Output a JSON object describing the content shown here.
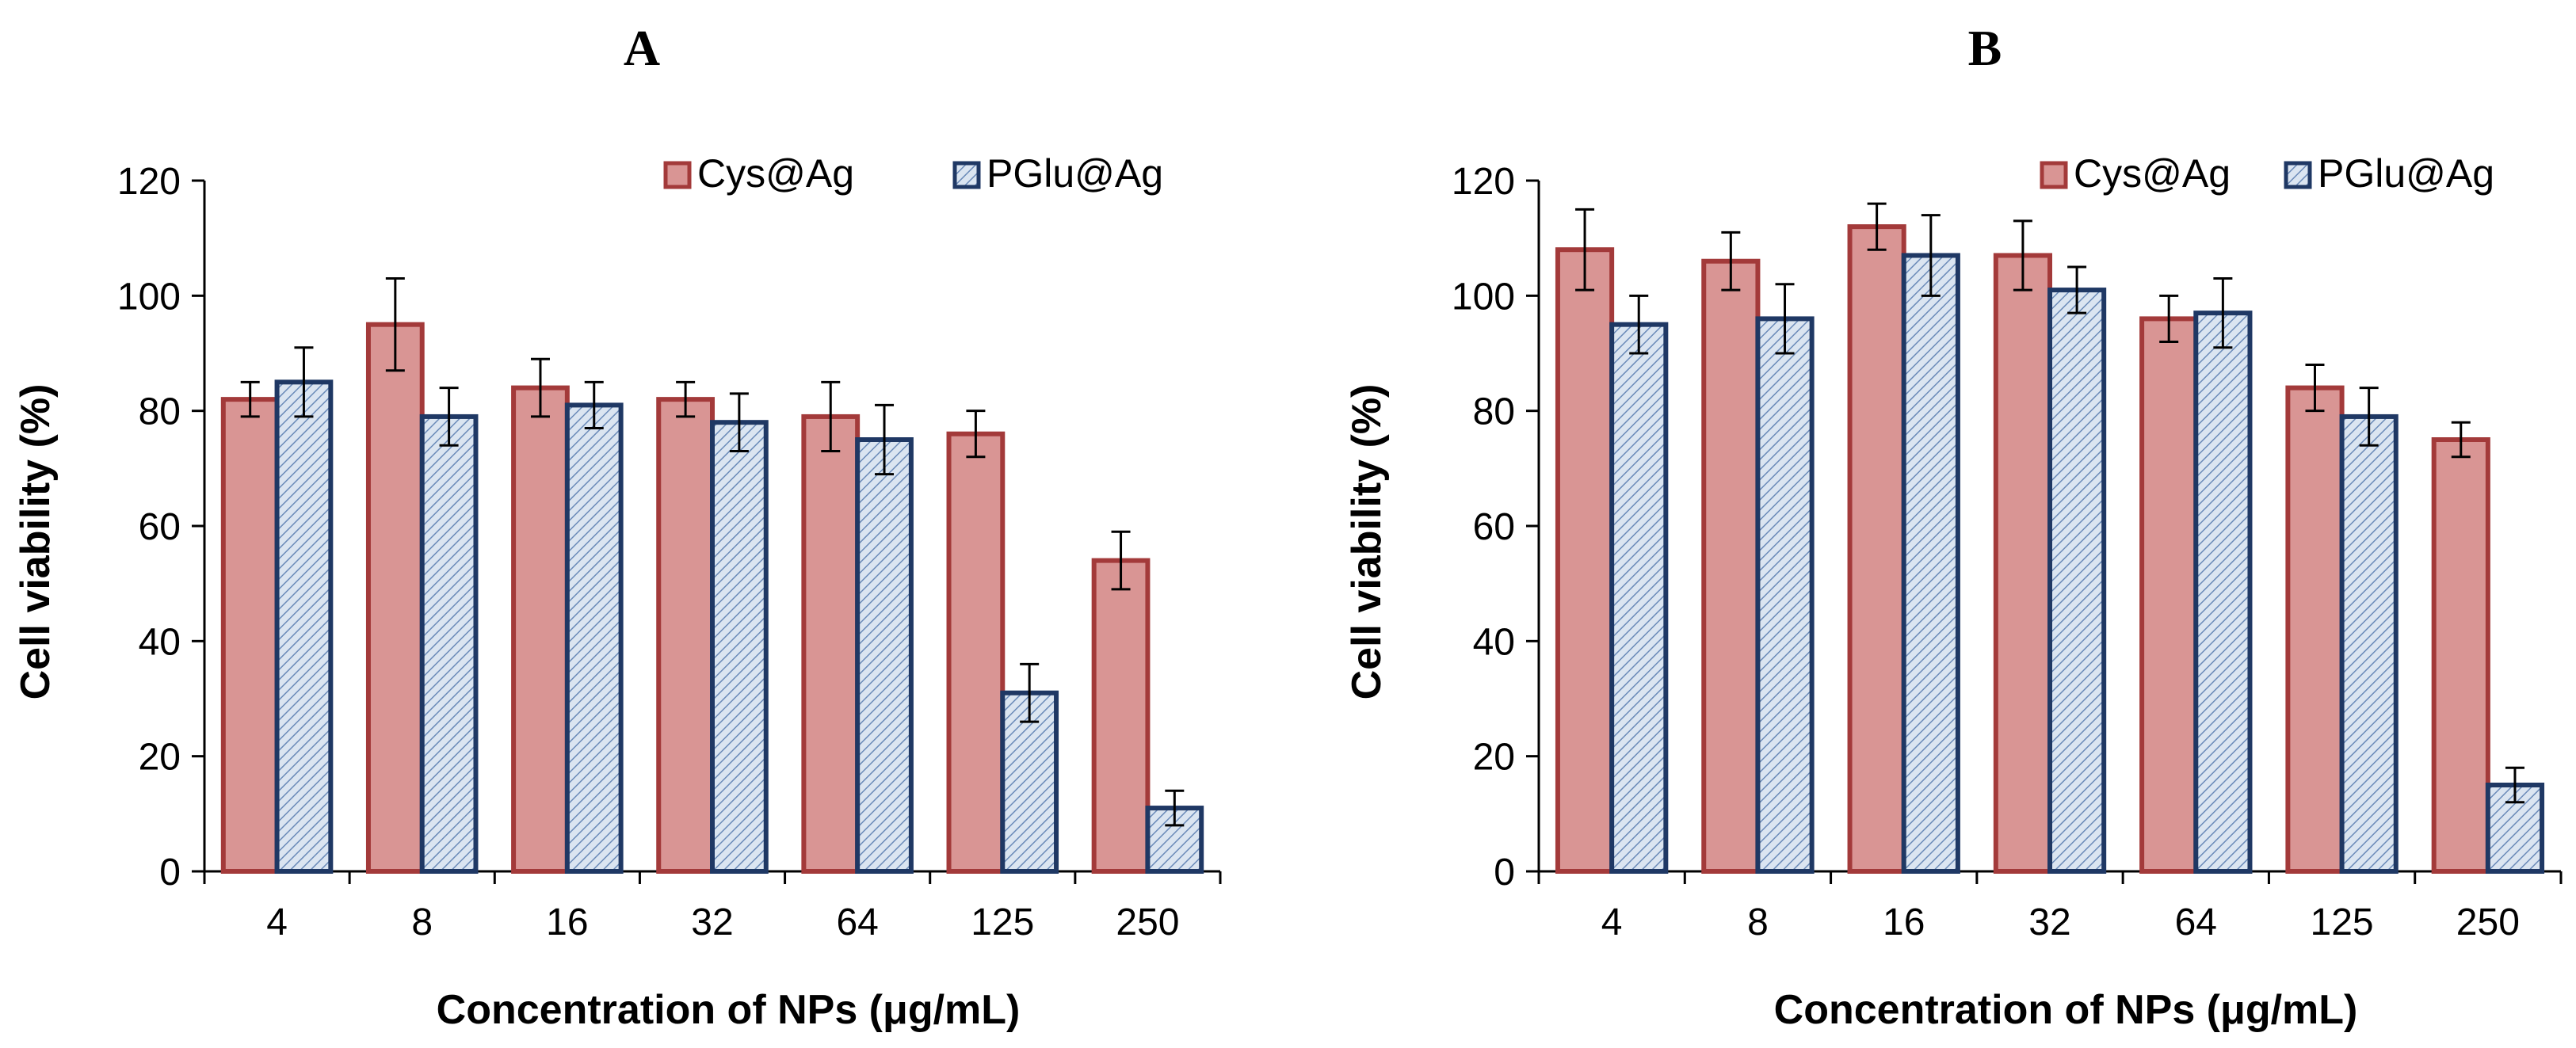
{
  "colors": {
    "series1_fill": "#d99594",
    "series1_stroke": "#a33a3a",
    "series2_fill": "#dbe5f1",
    "series2_hatch": "#6a8ab8",
    "series2_stroke": "#1f3864",
    "axis": "#000000"
  },
  "chart_data": [
    {
      "type": "bar",
      "panel_label": "A",
      "xlabel": "Concentration  of NPs  (μg/mL)",
      "ylabel": "Cell  viability  (%)",
      "ylim": [
        0,
        120
      ],
      "yticks": [
        0,
        20,
        40,
        60,
        80,
        100,
        120
      ],
      "categories": [
        "4",
        "8",
        "16",
        "32",
        "64",
        "125",
        "250"
      ],
      "legend_position": "top-right",
      "series": [
        {
          "name": "Cys@Ag",
          "values": [
            82,
            95,
            84,
            82,
            79,
            76,
            54
          ],
          "errors": [
            3,
            8,
            5,
            3,
            6,
            4,
            5
          ]
        },
        {
          "name": "PGlu@Ag",
          "values": [
            85,
            79,
            81,
            78,
            75,
            31,
            11
          ],
          "errors": [
            6,
            5,
            4,
            5,
            6,
            5,
            3
          ]
        }
      ]
    },
    {
      "type": "bar",
      "panel_label": "B",
      "xlabel": "Concentration  of NPs  (μg/mL)",
      "ylabel": "Cell  viability  (%)",
      "ylim": [
        0,
        120
      ],
      "yticks": [
        0,
        20,
        40,
        60,
        80,
        100,
        120
      ],
      "categories": [
        "4",
        "8",
        "16",
        "32",
        "64",
        "125",
        "250"
      ],
      "legend_position": "top-right",
      "series": [
        {
          "name": "Cys@Ag",
          "values": [
            108,
            106,
            112,
            107,
            96,
            84,
            75
          ],
          "errors": [
            7,
            5,
            4,
            6,
            4,
            4,
            3
          ]
        },
        {
          "name": "PGlu@Ag",
          "values": [
            95,
            96,
            107,
            101,
            97,
            79,
            15
          ],
          "errors": [
            5,
            6,
            7,
            4,
            6,
            5,
            3
          ]
        }
      ]
    }
  ]
}
